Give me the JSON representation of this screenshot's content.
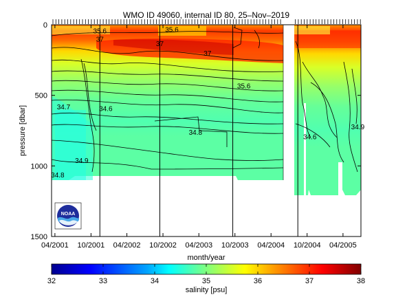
{
  "chart_data": [
    {
      "type": "heatmap",
      "title": "WMO ID 49060, internal ID 80, 25–Nov–2019",
      "xlabel": "month/year",
      "ylabel": "pressure [dbar]",
      "x_ticks": [
        "04/2001",
        "10/2001",
        "04/2002",
        "10/2002",
        "04/2003",
        "10/2003",
        "04/2004",
        "10/2004",
        "04/2005"
      ],
      "y_ticks": [
        0,
        500,
        1000,
        1500
      ],
      "ylim": [
        1500,
        0
      ],
      "y_reversed": true,
      "contour_labels": [
        {
          "x": "2001-11",
          "y": 60,
          "text": "35.6"
        },
        {
          "x": "2001-11",
          "y": 120,
          "text": "37"
        },
        {
          "x": "2002-09",
          "y": 150,
          "text": "37"
        },
        {
          "x": "2002-11",
          "y": 50,
          "text": "35.6"
        },
        {
          "x": "2003-05",
          "y": 220,
          "text": "37"
        },
        {
          "x": "2003-11",
          "y": 450,
          "text": "35.6"
        },
        {
          "x": "2001-05",
          "y": 600,
          "text": "34.7"
        },
        {
          "x": "2001-12",
          "y": 610,
          "text": "34.6"
        },
        {
          "x": "2003-03",
          "y": 780,
          "text": "34.8"
        },
        {
          "x": "2001-08",
          "y": 980,
          "text": "34.9"
        },
        {
          "x": "2001-04",
          "y": 1080,
          "text": "34.8"
        },
        {
          "x": "2004-10",
          "y": 810,
          "text": "34.6"
        },
        {
          "x": "2005-06",
          "y": 740,
          "text": "34.9"
        }
      ],
      "vertical_markers": [
        "2001-11-15",
        "2002-09-15",
        "2003-09-20",
        "2004-08-15"
      ],
      "data_gaps": [
        "2004-05 to 2004-07 (all depths)",
        "below ~1100 dbar before 2004-05"
      ],
      "colorbar": {
        "label": "salinity [psu]",
        "min": 32,
        "max": 38,
        "ticks": [
          32,
          33,
          34,
          35,
          36,
          37,
          38
        ]
      },
      "logo": "NOAA"
    }
  ],
  "colors": {
    "colormap": [
      "#00008f",
      "#0000ff",
      "#00a5ff",
      "#00ffff",
      "#7fff7f",
      "#ffff00",
      "#ff9a00",
      "#ff0000",
      "#800000"
    ],
    "axis": "#000000",
    "missing": "#ffffff"
  }
}
